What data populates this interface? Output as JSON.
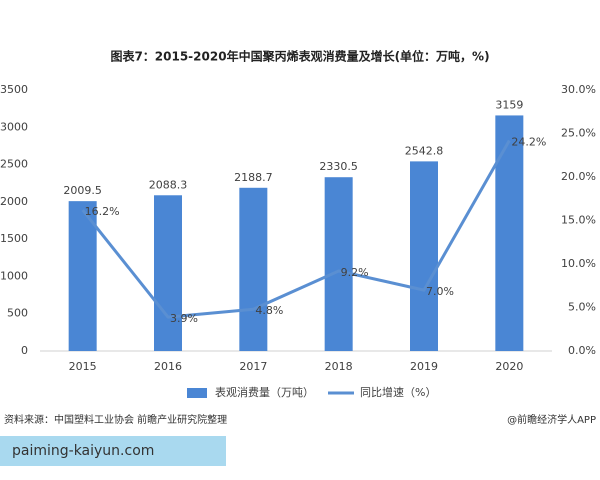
{
  "chart_data": {
    "type": "bar",
    "title": "图表7：2015-2020年中国聚丙烯表观消费量及增长(单位：万吨，%)",
    "categories": [
      "2015",
      "2016",
      "2017",
      "2018",
      "2019",
      "2020"
    ],
    "series": [
      {
        "name": "表观消费量（万吨）",
        "type": "bar",
        "color": "#4a86d4",
        "values": [
          2009.5,
          2088.3,
          2188.7,
          2330.5,
          2542.8,
          3159
        ]
      },
      {
        "name": "同比增速（%）",
        "type": "line",
        "axis": "y2",
        "color": "#5a8fd2",
        "values": [
          16.2,
          3.9,
          4.8,
          9.2,
          7.0,
          24.2
        ],
        "value_labels": [
          "16.2%",
          "3.9%",
          "4.8%",
          "9.2%",
          "7.0%",
          "24.2%"
        ]
      }
    ],
    "ylim": [
      0,
      3500
    ],
    "yticks": [
      0,
      500,
      1000,
      1500,
      2000,
      2500,
      3000,
      3500
    ],
    "y2lim": [
      0,
      30
    ],
    "y2ticks": [
      {
        "value": 0,
        "label": "0.0%"
      },
      {
        "value": 5,
        "label": "5.0%"
      },
      {
        "value": 10,
        "label": "10.0%"
      },
      {
        "value": 15,
        "label": "15.0%"
      },
      {
        "value": 20,
        "label": "20.0%"
      },
      {
        "value": 25,
        "label": "25.0%"
      },
      {
        "value": 30,
        "label": "30.0%"
      }
    ],
    "grid": false,
    "source": "资料来源：中国塑料工业协会 前瞻产业研究院整理",
    "credit": "@前瞻经济学人APP",
    "watermark": "paiming-kaiyun.com"
  }
}
